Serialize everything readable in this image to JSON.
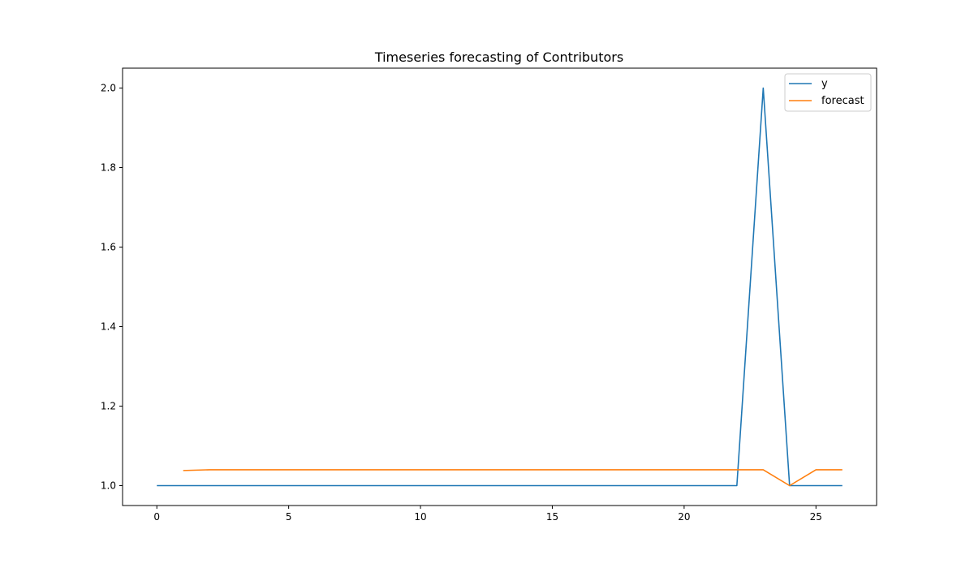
{
  "chart_data": {
    "type": "line",
    "title": "Timeseries forecasting of Contributors",
    "xlabel": "",
    "ylabel": "",
    "xlim": [
      -1.3,
      27.3
    ],
    "ylim": [
      0.95,
      2.05
    ],
    "x_ticks": [
      0,
      5,
      10,
      15,
      20,
      25
    ],
    "y_ticks": [
      1.0,
      1.2,
      1.4,
      1.6,
      1.8,
      2.0
    ],
    "grid": false,
    "legend_position": "top-right",
    "series": [
      {
        "name": "y",
        "color": "#1f77b4",
        "x": [
          0,
          1,
          2,
          3,
          4,
          5,
          6,
          7,
          8,
          9,
          10,
          11,
          12,
          13,
          14,
          15,
          16,
          17,
          18,
          19,
          20,
          21,
          22,
          23,
          24,
          25,
          26
        ],
        "values": [
          1,
          1,
          1,
          1,
          1,
          1,
          1,
          1,
          1,
          1,
          1,
          1,
          1,
          1,
          1,
          1,
          1,
          1,
          1,
          1,
          1,
          1,
          1,
          2,
          1,
          1,
          1
        ]
      },
      {
        "name": "forecast",
        "color": "#ff7f0e",
        "x": [
          1,
          2,
          3,
          4,
          5,
          6,
          7,
          8,
          9,
          10,
          11,
          12,
          13,
          14,
          15,
          16,
          17,
          18,
          19,
          20,
          21,
          22,
          23,
          24,
          25,
          26
        ],
        "values": [
          1.038,
          1.04,
          1.04,
          1.04,
          1.04,
          1.04,
          1.04,
          1.04,
          1.04,
          1.04,
          1.04,
          1.04,
          1.04,
          1.04,
          1.04,
          1.04,
          1.04,
          1.04,
          1.04,
          1.04,
          1.04,
          1.04,
          1.04,
          1.0,
          1.04,
          1.04
        ]
      }
    ]
  }
}
